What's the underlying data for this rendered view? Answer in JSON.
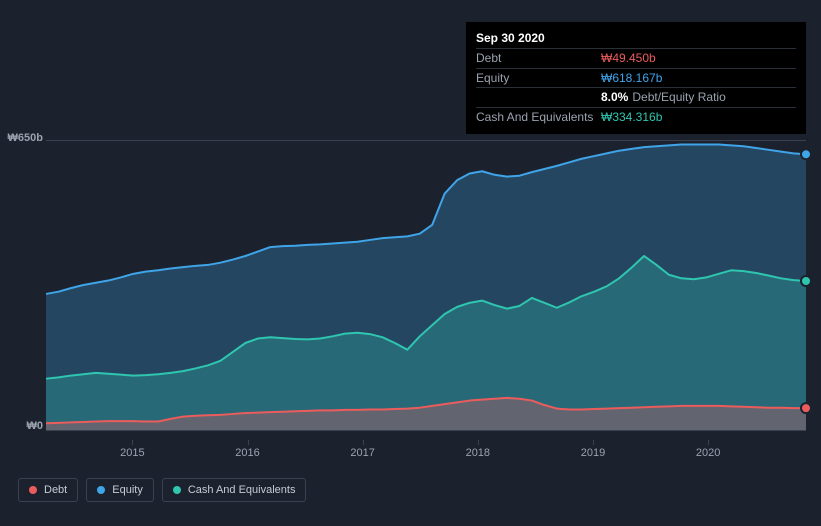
{
  "chart": {
    "type": "area",
    "background_color": "#1b222d",
    "grid_color": "#3a4150",
    "text_color": "#9aa3af",
    "y_axis": {
      "min": 0,
      "max": 650,
      "top_label": "₩650b",
      "bottom_label": "₩0"
    },
    "x_axis": {
      "ticks": [
        "2015",
        "2016",
        "2017",
        "2018",
        "2019",
        "2020"
      ],
      "range_years": [
        2014.25,
        2020.85
      ]
    },
    "series": {
      "equity": {
        "label": "Equity",
        "color": "#3fa4e8",
        "fill_opacity": 0.28,
        "line_width": 2,
        "values": [
          305,
          310,
          318,
          325,
          330,
          335,
          342,
          350,
          355,
          358,
          362,
          365,
          368,
          370,
          375,
          382,
          390,
          400,
          410,
          412,
          413,
          415,
          416,
          418,
          420,
          422,
          426,
          430,
          432,
          434,
          440,
          460,
          530,
          560,
          575,
          580,
          572,
          568,
          570,
          578,
          585,
          592,
          600,
          608,
          614,
          620,
          626,
          630,
          634,
          636,
          638,
          640,
          640,
          640,
          640,
          638,
          636,
          632,
          628,
          624,
          620,
          618
        ]
      },
      "cash": {
        "label": "Cash And Equivalents",
        "color": "#2fc6b0",
        "fill_opacity": 0.28,
        "line_width": 2,
        "values": [
          115,
          118,
          122,
          125,
          128,
          126,
          124,
          122,
          123,
          125,
          128,
          132,
          138,
          145,
          155,
          175,
          195,
          205,
          208,
          206,
          204,
          203,
          205,
          210,
          216,
          218,
          215,
          208,
          195,
          180,
          210,
          235,
          260,
          276,
          285,
          290,
          280,
          272,
          278,
          296,
          285,
          274,
          286,
          300,
          310,
          322,
          340,
          364,
          390,
          370,
          348,
          340,
          338,
          342,
          350,
          358,
          356,
          352,
          346,
          340,
          336,
          334
        ]
      },
      "debt": {
        "label": "Debt",
        "color": "#eb5c5c",
        "fill_opacity": 0.3,
        "line_width": 2,
        "values": [
          15,
          16,
          17,
          18,
          19,
          20,
          20,
          20,
          19,
          19,
          25,
          30,
          32,
          33,
          34,
          36,
          38,
          39,
          40,
          41,
          42,
          43,
          44,
          44,
          45,
          45,
          46,
          46,
          47,
          48,
          50,
          54,
          58,
          62,
          66,
          68,
          70,
          72,
          70,
          66,
          56,
          48,
          46,
          46,
          47,
          48,
          49,
          50,
          51,
          52,
          53,
          54,
          54,
          54,
          54,
          53,
          52,
          51,
          50,
          50,
          49,
          49
        ]
      }
    }
  },
  "tooltip": {
    "date": "Sep 30 2020",
    "debt_label": "Debt",
    "debt_value": "₩49.450b",
    "equity_label": "Equity",
    "equity_value": "₩618.167b",
    "ratio_value": "8.0%",
    "ratio_label": "Debt/Equity Ratio",
    "cash_label": "Cash And Equivalents",
    "cash_value": "₩334.316b"
  },
  "legend": {
    "items": [
      {
        "label": "Debt",
        "color": "#eb5c5c"
      },
      {
        "label": "Equity",
        "color": "#3fa4e8"
      },
      {
        "label": "Cash And Equivalents",
        "color": "#2fc6b0"
      }
    ]
  }
}
